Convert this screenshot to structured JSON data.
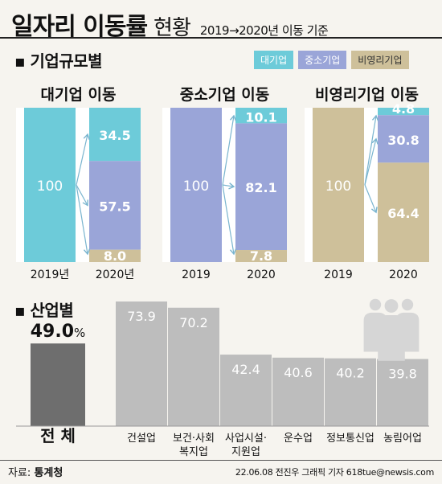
{
  "header": {
    "title": "일자리 이동률",
    "title_light": "현황",
    "subtitle": "2019→2020년 이동 기준"
  },
  "section1": {
    "label": "▪ 기업규모별"
  },
  "section2": {
    "label": "▪ 산업별"
  },
  "colors": {
    "large": "#6dcbd9",
    "sme": "#9aa5d8",
    "nonprofit": "#cec09a",
    "total_bar": "#6e6e6e",
    "industry_bar": "#bdbdbd",
    "arrow": "#7ab5cf"
  },
  "legend": [
    {
      "label": "대기업",
      "color": "#6dcbd9"
    },
    {
      "label": "중소기업",
      "color": "#9aa5d8"
    },
    {
      "label": "비영리기업",
      "color": "#cec09a"
    }
  ],
  "chart_data": [
    {
      "type": "bar",
      "subtype": "stacked-100",
      "panels": [
        {
          "title": "대기업 이동",
          "source": {
            "year": "2019년",
            "value": 100,
            "color": "#6dcbd9"
          },
          "target_year": "2020년",
          "segments": [
            {
              "key": "large",
              "value": 34.5,
              "label": "34.5",
              "color": "#6dcbd9"
            },
            {
              "key": "sme",
              "value": 57.5,
              "label": "57.5",
              "color": "#9aa5d8"
            },
            {
              "key": "nonprofit",
              "value": 8.0,
              "label": "8.0",
              "color": "#cec09a"
            }
          ]
        },
        {
          "title": "중소기업 이동",
          "source": {
            "year": "2019",
            "value": 100,
            "color": "#9aa5d8"
          },
          "target_year": "2020",
          "segments": [
            {
              "key": "large",
              "value": 10.1,
              "label": "10.1",
              "color": "#6dcbd9"
            },
            {
              "key": "sme",
              "value": 82.1,
              "label": "82.1",
              "color": "#9aa5d8"
            },
            {
              "key": "nonprofit",
              "value": 7.8,
              "label": "7.8",
              "color": "#cec09a"
            }
          ]
        },
        {
          "title": "비영리기업 이동",
          "source": {
            "year": "2019",
            "value": 100,
            "color": "#cec09a"
          },
          "target_year": "2020",
          "segments": [
            {
              "key": "large",
              "value": 4.8,
              "label": "4.8",
              "color": "#6dcbd9"
            },
            {
              "key": "sme",
              "value": 30.8,
              "label": "30.8",
              "color": "#9aa5d8"
            },
            {
              "key": "nonprofit",
              "value": 64.4,
              "label": "64.4",
              "color": "#cec09a"
            }
          ]
        }
      ]
    },
    {
      "type": "bar",
      "unit": "%",
      "categories": [
        [
          "전 체"
        ],
        [
          "건설업"
        ],
        [
          "보건·사회",
          "복지업"
        ],
        [
          "사업시설·",
          "지원업"
        ],
        [
          "운수업"
        ],
        [
          "정보통신업"
        ],
        [
          "농림어업"
        ]
      ],
      "values": [
        49.0,
        73.9,
        70.2,
        42.4,
        40.6,
        40.2,
        39.8
      ],
      "labels": [
        "49.0",
        "73.9",
        "70.2",
        "42.4",
        "40.6",
        "40.2",
        "39.8"
      ],
      "highlight_unit": "%"
    }
  ],
  "footer": {
    "source_label": "자료: ",
    "source_value": "통계청",
    "credit": "22.06.08 전진우 그래픽 기자 618tue@newsis.com"
  }
}
